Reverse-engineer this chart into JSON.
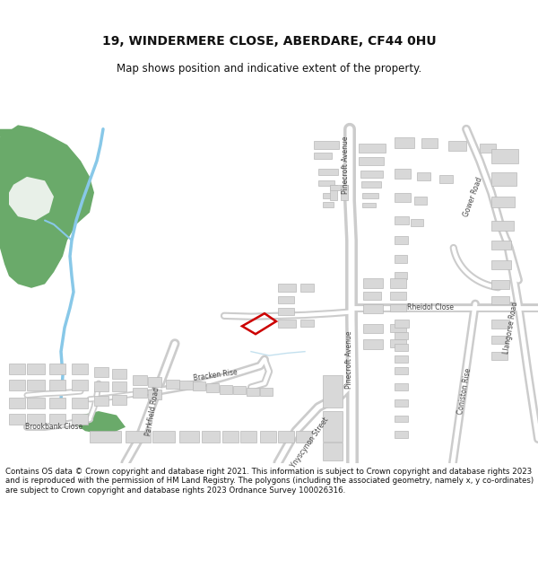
{
  "title": "19, WINDERMERE CLOSE, ABERDARE, CF44 0HU",
  "subtitle": "Map shows position and indicative extent of the property.",
  "footer": "Contains OS data © Crown copyright and database right 2021. This information is subject to Crown copyright and database rights 2023 and is reproduced with the permission of HM Land Registry. The polygons (including the associated geometry, namely x, y co-ordinates) are subject to Crown copyright and database rights 2023 Ordnance Survey 100026316.",
  "bg_color": "#ffffff",
  "map_bg": "#f5f5f5",
  "green_color": "#6aaa6a",
  "blue_color": "#88c8e8",
  "road_color": "#ffffff",
  "road_outline": "#cccccc",
  "building_color": "#d8d8d8",
  "building_outline": "#b8b8b8",
  "red_color": "#cc0000",
  "label_color": "#444444",
  "title_size": 10,
  "subtitle_size": 8.5,
  "footer_size": 6.2,
  "label_size": 5.5
}
